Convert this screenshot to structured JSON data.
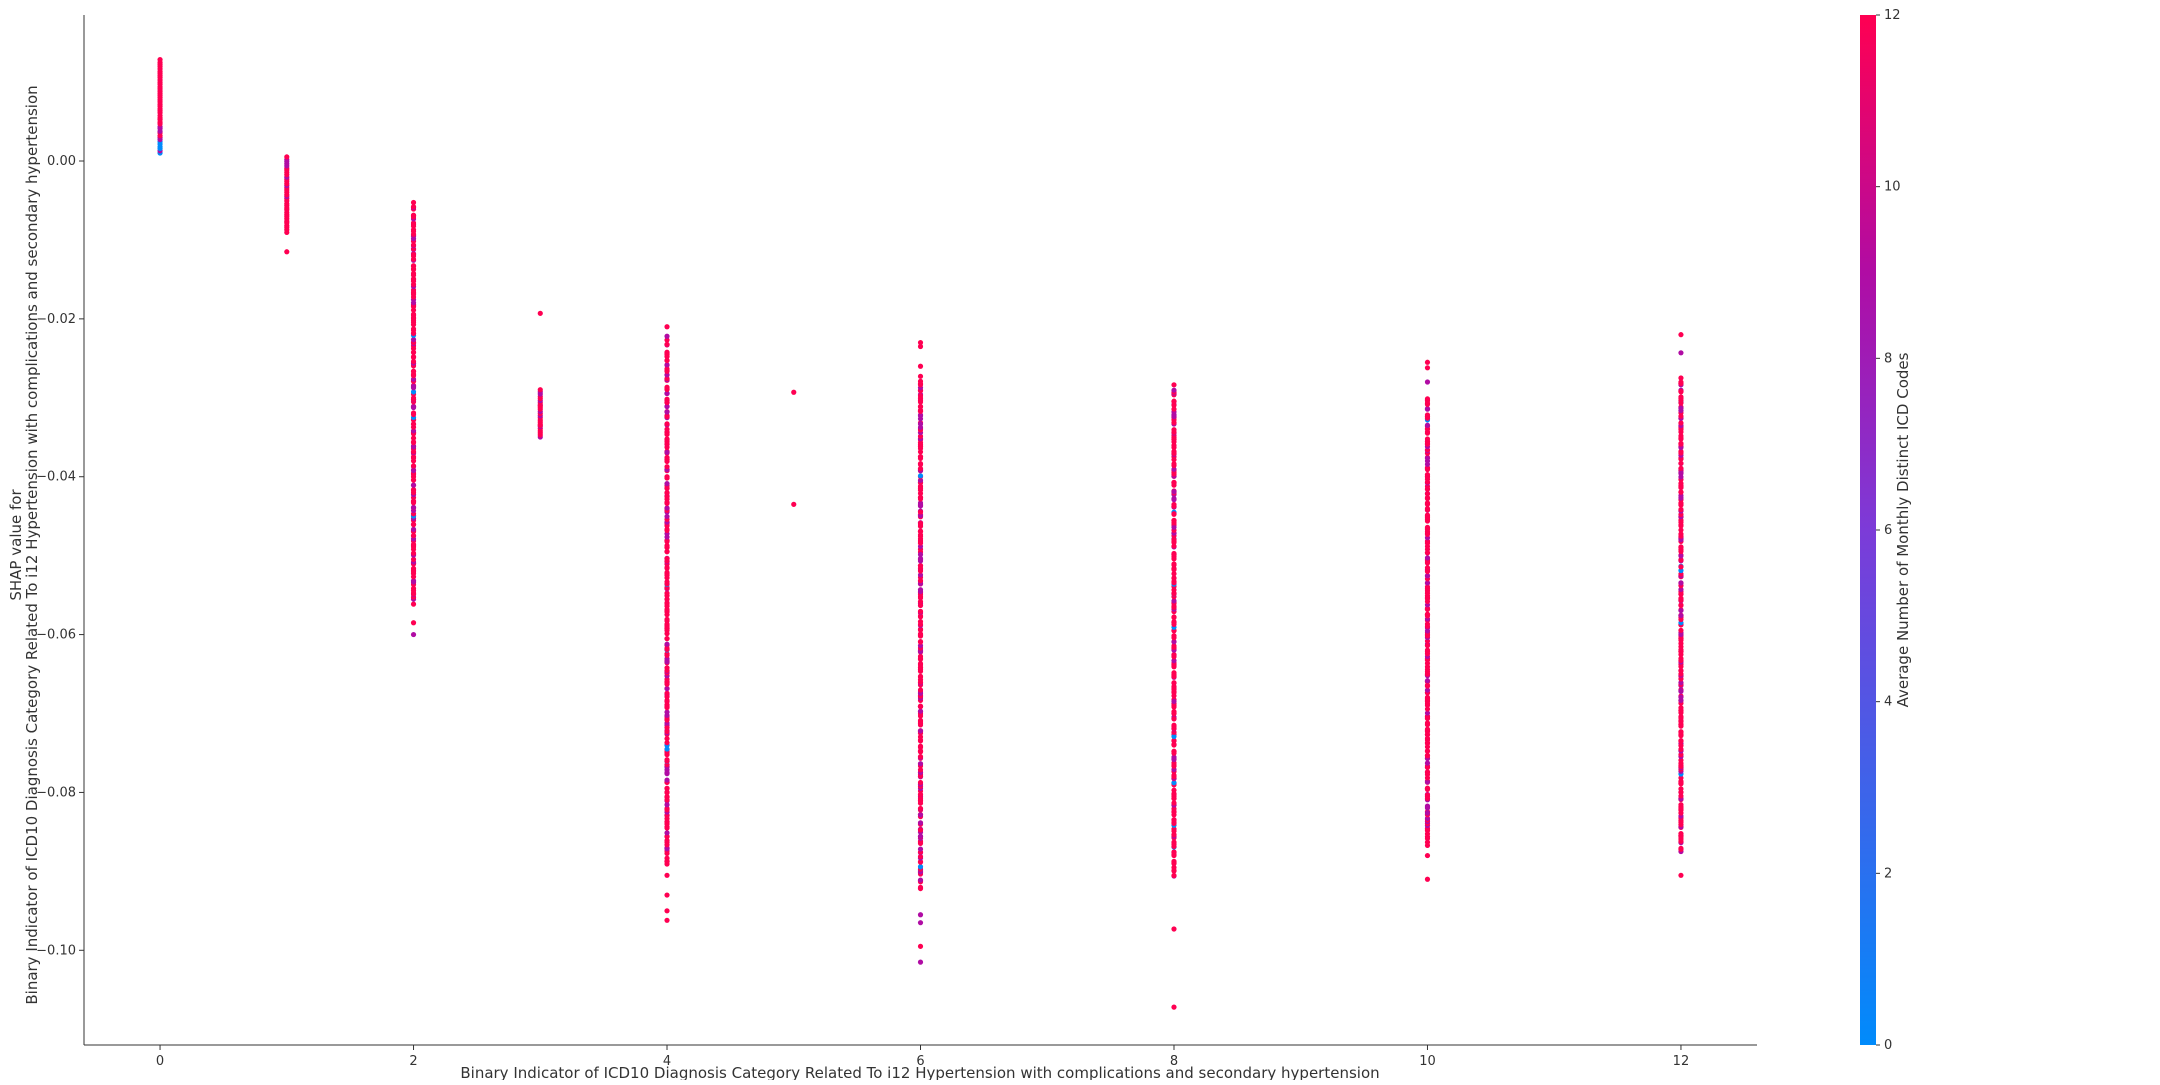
{
  "colors": {
    "low": "#008bfb",
    "mid": "#b00ca4",
    "high": "#ff0052",
    "axis": "#333333"
  },
  "chart_data": {
    "type": "scatter",
    "title": "",
    "xlabel": "Binary Indicator of ICD10 Diagnosis Category Related To i12 Hypertension with complications and secondary hypertension",
    "ylabel_lines": [
      "SHAP value for",
      "Binary Indicator of ICD10 Diagnosis Category Related To i12 Hypertension with complications and secondary hypertension"
    ],
    "xlim": [
      -0.6,
      12.6
    ],
    "ylim": [
      -0.112,
      0.0185
    ],
    "xticks": [
      0,
      2,
      4,
      6,
      8,
      10,
      12
    ],
    "yticks": [
      0.0,
      -0.02,
      -0.04,
      -0.06,
      -0.08,
      -0.1
    ],
    "ytick_labels": [
      "0.00",
      "−0.02",
      "−0.04",
      "−0.06",
      "−0.08",
      "−0.10"
    ],
    "grid": false,
    "colorbar": {
      "label": "Average Number of Monthly Distinct ICD Codes",
      "range": [
        0,
        12
      ],
      "ticks": [
        0,
        2,
        4,
        6,
        8,
        10,
        12
      ],
      "colormap": [
        "#008bfb",
        "#b00ca4",
        "#ff0052"
      ]
    },
    "columns": [
      {
        "x": 0,
        "ymin": 0.001,
        "ymax": 0.0128,
        "color_hint": "mixed: blue/purple at bottom, red at top",
        "outliers": []
      },
      {
        "x": 1,
        "ymin": -0.009,
        "ymax": 0.0005,
        "color_hint": "mostly red",
        "outliers": [
          -0.0115
        ]
      },
      {
        "x": 2,
        "ymin": -0.056,
        "ymax": -0.0055,
        "color_hint": "mostly red with purple",
        "outliers": [
          -0.0585,
          -0.06
        ]
      },
      {
        "x": 3,
        "ymin": -0.035,
        "ymax": -0.029,
        "color_hint": "red/purple",
        "outliers": [
          -0.0193,
          -0.031,
          -0.0335
        ]
      },
      {
        "x": 4,
        "ymin": -0.089,
        "ymax": -0.0225,
        "color_hint": "mixed, red dominant",
        "outliers": [
          -0.021,
          -0.0905,
          -0.093,
          -0.095,
          -0.0962
        ]
      },
      {
        "x": 5,
        "ymin": null,
        "ymax": null,
        "color_hint": "red",
        "outliers": [
          -0.0293,
          -0.0435
        ]
      },
      {
        "x": 6,
        "ymin": -0.092,
        "ymax": -0.0275,
        "color_hint": "mixed, red dominant",
        "outliers": [
          -0.023,
          -0.0235,
          -0.026,
          -0.0955,
          -0.0965,
          -0.0995,
          -0.1015
        ]
      },
      {
        "x": 8,
        "ymin": -0.0905,
        "ymax": -0.0285,
        "color_hint": "mixed, red dominant",
        "outliers": [
          -0.0973,
          -0.1072
        ]
      },
      {
        "x": 10,
        "ymin": -0.0865,
        "ymax": -0.03,
        "color_hint": "mixed, red dominant",
        "outliers": [
          -0.0255,
          -0.0262,
          -0.028,
          -0.088,
          -0.091
        ]
      },
      {
        "x": 12,
        "ymin": -0.0875,
        "ymax": -0.0275,
        "color_hint": "mixed, red dominant",
        "outliers": [
          -0.022,
          -0.0243,
          -0.0855,
          -0.0905
        ]
      }
    ]
  }
}
